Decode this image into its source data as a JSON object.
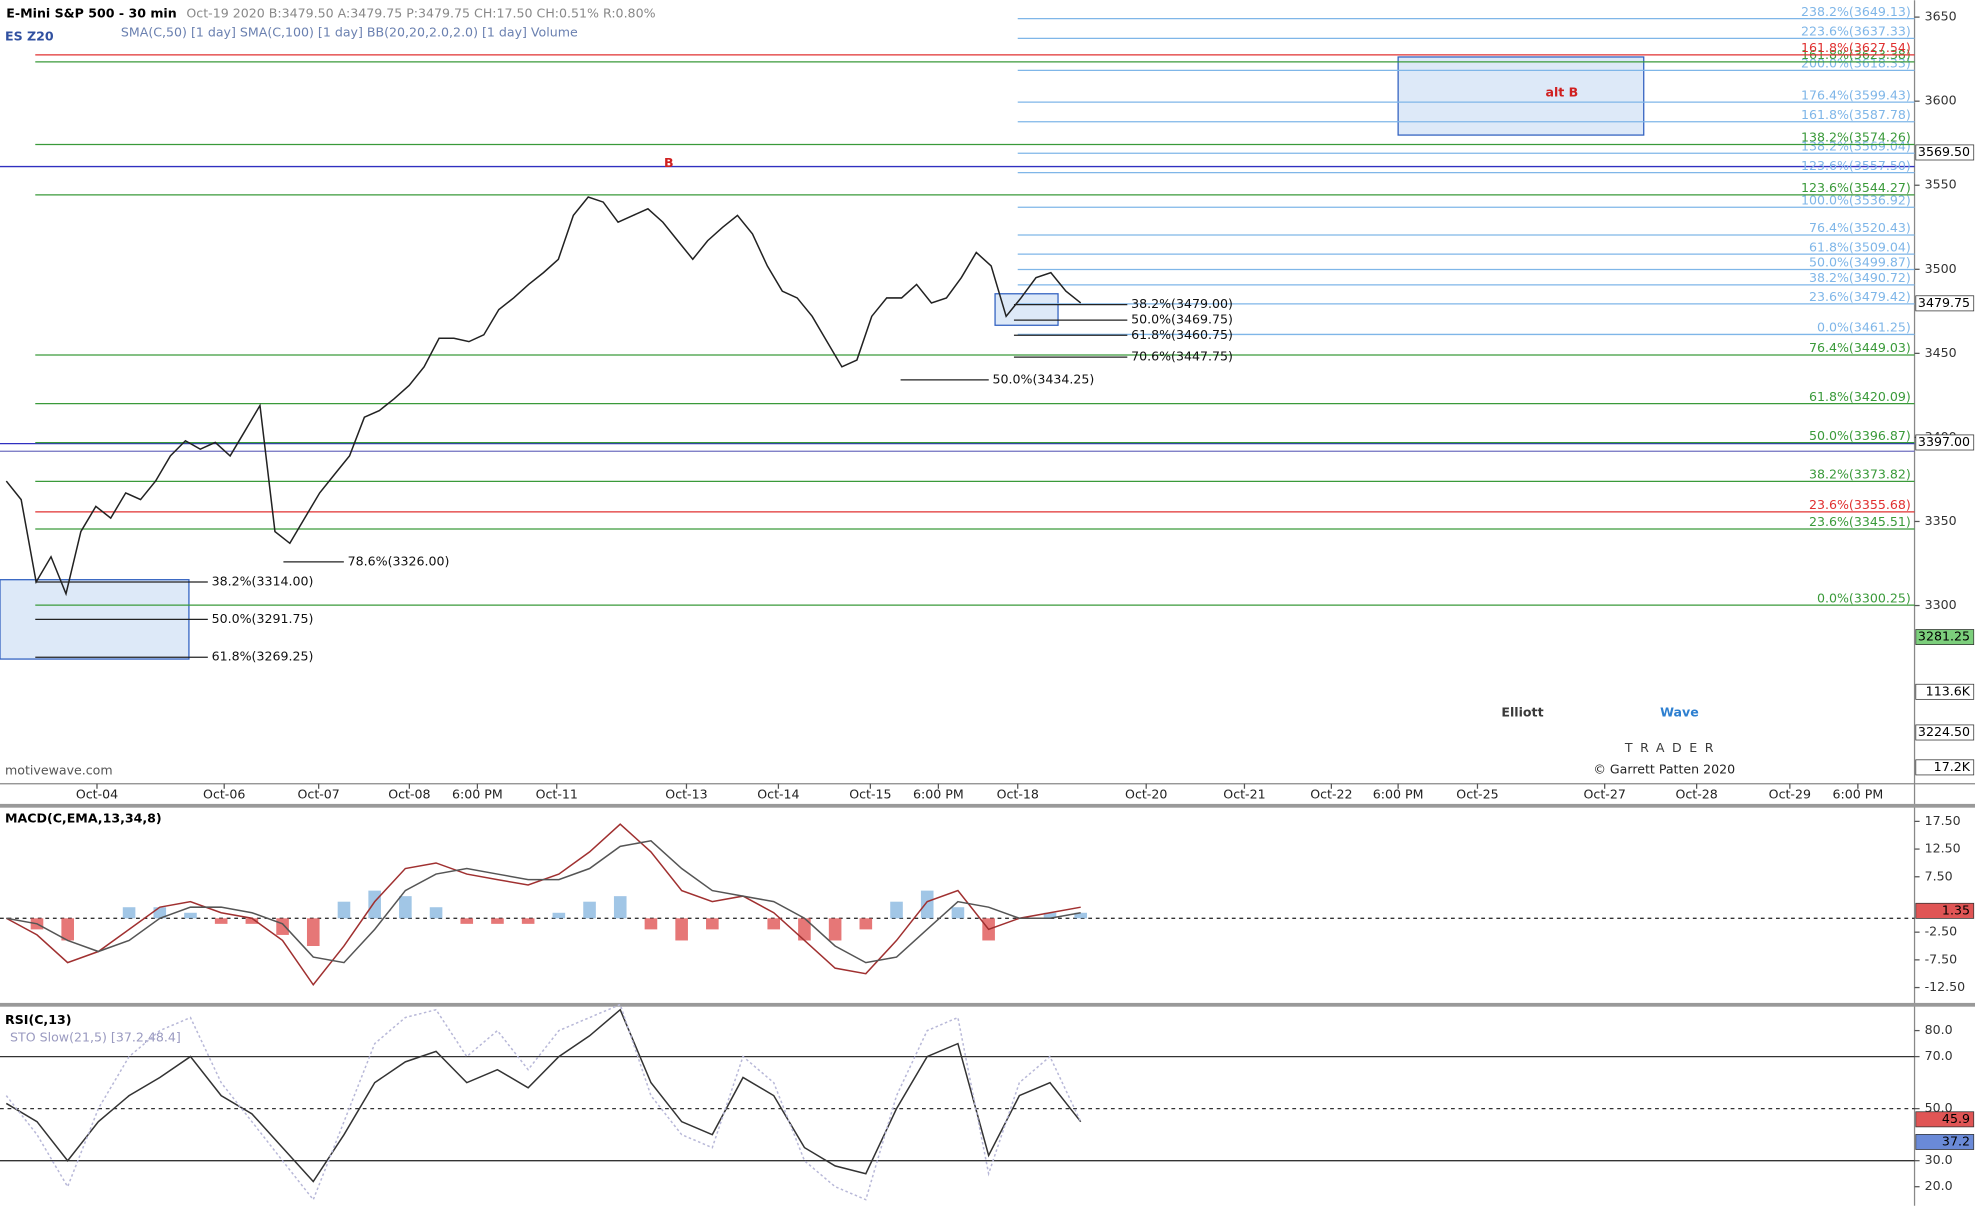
{
  "header": {
    "title": "E-Mini S&P 500 - 30 min",
    "quote": "Oct-19 2020 B:3479.50 A:3479.75 P:3479.75 CH:17.50 CH:0.51% R:0.80%",
    "symbol": "ES Z20",
    "studies": "SMA(C,50) [1 day]  SMA(C,100) [1 day]  BB(20,20,2.0,2.0) [1 day]  Volume"
  },
  "watermark": "motivewave.com",
  "logo": {
    "word1": "Elliott",
    "word2": "Wave",
    "sub": "TRADER",
    "copyright": "© Garrett Patten 2020"
  },
  "chart_data": [
    {
      "type": "line",
      "color": "#222222",
      "values": [
        3374,
        3363,
        3314,
        3329,
        3307,
        3344,
        3359,
        3352,
        3367,
        3363,
        3374,
        3389,
        3398,
        3393,
        3397,
        3389,
        3404,
        3419,
        3344,
        3337,
        3352,
        3367,
        3378,
        3389,
        3412,
        3416,
        3423,
        3431,
        3442,
        3459,
        3459,
        3457,
        3461,
        3476,
        3483,
        3491,
        3498,
        3506,
        3532,
        3543,
        3540,
        3528,
        3532,
        3536,
        3528,
        3517,
        3506,
        3517,
        3525,
        3532,
        3521,
        3502,
        3487,
        3483,
        3472,
        3457,
        3442,
        3446,
        3472,
        3483,
        3483,
        3491,
        3480,
        3483,
        3495,
        3510,
        3502,
        3472,
        3483,
        3495,
        3498,
        3487,
        3480
      ],
      "ylim": [
        3194,
        3660
      ],
      "yticks": [
        3300,
        3350,
        3400,
        3450,
        3500,
        3550,
        3600,
        3650
      ],
      "x_axis_labels": [
        "Oct-04",
        "Oct-06",
        "Oct-07",
        "Oct-08",
        "6:00 PM",
        "Oct-11",
        "Oct-13",
        "Oct-14",
        "Oct-15",
        "6:00 PM",
        "Oct-18",
        "Oct-20",
        "Oct-21",
        "Oct-22",
        "6:00 PM",
        "Oct-25",
        "Oct-27",
        "Oct-28",
        "Oct-29",
        "6:00 PM"
      ],
      "levels": [
        {
          "label": "0.0%(3300.25)",
          "value": 3300.25,
          "color": "#3a9a3a"
        },
        {
          "label": "23.6%(3345.51)",
          "value": 3345.51,
          "color": "#3a9a3a"
        },
        {
          "label": "23.6%(3355.68)",
          "value": 3355.68,
          "color": "#e03030"
        },
        {
          "label": "38.2%(3373.82)",
          "value": 3373.82,
          "color": "#3a9a3a"
        },
        {
          "label": "50.0%(3396.87)",
          "value": 3396.87,
          "color": "#3a9a3a"
        },
        {
          "label": "61.8%(3420.09)",
          "value": 3420.09,
          "color": "#3a9a3a"
        },
        {
          "label": "76.4%(3449.03)",
          "value": 3449.03,
          "color": "#3a9a3a"
        },
        {
          "label": "0.0%(3461.25)",
          "value": 3461.25,
          "color": "#7fb6e8"
        },
        {
          "label": "23.6%(3479.42)",
          "value": 3479.42,
          "color": "#7fb6e8"
        },
        {
          "label": "38.2%(3490.72)",
          "value": 3490.72,
          "color": "#7fb6e8"
        },
        {
          "label": "50.0%(3499.87)",
          "value": 3499.87,
          "color": "#7fb6e8"
        },
        {
          "label": "61.8%(3509.04)",
          "value": 3509.04,
          "color": "#7fb6e8"
        },
        {
          "label": "76.4%(3520.43)",
          "value": 3520.43,
          "color": "#7fb6e8"
        },
        {
          "label": "100.0%(3536.92)",
          "value": 3536.92,
          "color": "#7fb6e8"
        },
        {
          "label": "123.6%(3544.27)",
          "value": 3544.27,
          "color": "#3a9a3a"
        },
        {
          "label": "123.6%(3557.50)",
          "value": 3557.5,
          "color": "#7fb6e8"
        },
        {
          "label": "138.2%(3569.04)",
          "value": 3569.04,
          "color": "#7fb6e8"
        },
        {
          "label": "138.2%(3574.26)",
          "value": 3574.26,
          "color": "#3a9a3a"
        },
        {
          "label": "161.8%(3587.78)",
          "value": 3587.78,
          "color": "#7fb6e8"
        },
        {
          "label": "176.4%(3599.43)",
          "value": 3599.43,
          "color": "#7fb6e8"
        },
        {
          "label": "200.0%(3618.33)",
          "value": 3618.33,
          "color": "#7fb6e8"
        },
        {
          "label": "161.8%(3623.38)",
          "value": 3623.38,
          "color": "#3a9a3a"
        },
        {
          "label": "161.8%(3627.54)",
          "value": 3627.54,
          "color": "#e03030"
        },
        {
          "label": "223.6%(3637.33)",
          "value": 3637.33,
          "color": "#7fb6e8"
        },
        {
          "label": "238.2%(3649.13)",
          "value": 3649.13,
          "color": "#7fb6e8"
        }
      ],
      "annotations": [
        {
          "label": "38.2%(3479.00)",
          "value": 3479.0
        },
        {
          "label": "50.0%(3469.75)",
          "value": 3469.75
        },
        {
          "label": "61.8%(3460.75)",
          "value": 3460.75
        },
        {
          "label": "70.6%(3447.75)",
          "value": 3447.75
        },
        {
          "label": "50.0%(3434.25)",
          "value": 3434.25
        },
        {
          "label": "78.6%(3326.00)",
          "value": 3326.0
        },
        {
          "label": "38.2%(3314.00)",
          "value": 3314.0
        },
        {
          "label": "50.0%(3291.75)",
          "value": 3291.75
        },
        {
          "label": "61.8%(3269.25)",
          "value": 3269.25
        }
      ],
      "price_tags": [
        {
          "label": "3569.50",
          "value": 3569.5,
          "color": "#ffffff"
        },
        {
          "label": "3479.75",
          "value": 3479.75,
          "color": "#ffffff"
        },
        {
          "label": "3397.00",
          "value": 3397.0,
          "color": "#ffffff"
        },
        {
          "label": "3281.25",
          "value": 3281.25,
          "color": "#7ccf7c"
        },
        {
          "label": "3224.50",
          "value": 3224.5,
          "color": "#ffffff"
        }
      ],
      "volume_tags": [
        "113.6K",
        "17.2K"
      ],
      "wave_labels": [
        {
          "label": "B",
          "value": 3563,
          "color": "#d02020"
        },
        {
          "label": "alt B",
          "value": 3605,
          "color": "#d02020"
        }
      ]
    },
    {
      "type": "line",
      "title": "MACD(C,EMA,13,34,8)",
      "series": [
        {
          "color": "#a03030",
          "values": [
            0,
            -3,
            -8,
            -6,
            -2,
            2,
            3,
            1,
            0,
            -4,
            -12,
            -5,
            3,
            9,
            10,
            8,
            7,
            6,
            8,
            12,
            17,
            12,
            5,
            3,
            4,
            1,
            -4,
            -9,
            -10,
            -4,
            3,
            5,
            -2,
            0,
            1,
            2
          ]
        },
        {
          "color": "#555555",
          "values": [
            0,
            -1,
            -4,
            -6,
            -4,
            0,
            2,
            2,
            1,
            -1,
            -7,
            -8,
            -2,
            5,
            8,
            9,
            8,
            7,
            7,
            9,
            13,
            14,
            9,
            5,
            4,
            3,
            0,
            -5,
            -8,
            -7,
            -2,
            3,
            2,
            0,
            0,
            1
          ]
        }
      ],
      "histogram": {
        "pos_color": "#8ab8e0",
        "neg_color": "#e05555",
        "values": [
          0,
          -2,
          -4,
          0,
          2,
          2,
          1,
          -1,
          -1,
          -3,
          -5,
          3,
          5,
          4,
          2,
          -1,
          -1,
          -1,
          1,
          3,
          4,
          -2,
          -4,
          -2,
          0,
          -2,
          -4,
          -4,
          -2,
          3,
          5,
          2,
          -4,
          0,
          1,
          1
        ]
      },
      "ylim": [
        -15.5,
        20.2
      ],
      "yticks": [
        {
          "value": 17.5,
          "label": "17.50"
        },
        {
          "value": 12.5,
          "label": "12.50"
        },
        {
          "value": 7.5,
          "label": "7.50"
        },
        {
          "value": -2.5,
          "label": "-2.50"
        },
        {
          "value": -7.5,
          "label": "-7.50"
        },
        {
          "value": -12.5,
          "label": "-12.50"
        }
      ],
      "tag": {
        "label": "1.35",
        "value": 1.35,
        "color": "#e05555"
      }
    },
    {
      "type": "line",
      "title": "RSI(C,13)",
      "subtitle": "STO Slow(21,5) [37.2,48.4]",
      "series": [
        {
          "color": "#333333",
          "values": [
            52,
            45,
            30,
            45,
            55,
            62,
            70,
            55,
            48,
            35,
            22,
            40,
            60,
            68,
            72,
            60,
            65,
            58,
            70,
            78,
            88,
            60,
            45,
            40,
            62,
            55,
            35,
            28,
            25,
            50,
            70,
            75,
            32,
            55,
            60,
            45
          ]
        },
        {
          "color": "#b8b8d8",
          "dashed": true,
          "values": [
            55,
            40,
            20,
            50,
            70,
            80,
            85,
            60,
            45,
            30,
            15,
            45,
            75,
            85,
            88,
            70,
            80,
            65,
            80,
            85,
            90,
            55,
            40,
            35,
            70,
            60,
            30,
            20,
            15,
            55,
            80,
            85,
            25,
            60,
            70,
            45
          ]
        }
      ],
      "ylim": [
        12.7,
        88.7
      ],
      "yticks": [
        {
          "value": 20,
          "label": "20.0"
        },
        {
          "value": 30,
          "label": "30.0"
        },
        {
          "value": 50,
          "label": "50.0"
        },
        {
          "value": 70,
          "label": "70.0"
        },
        {
          "value": 80,
          "label": "80.0"
        }
      ],
      "hlines": [
        70,
        50,
        30
      ],
      "tags": [
        {
          "label": "45.9",
          "value": 45.9,
          "color": "#e05555"
        },
        {
          "label": "37.2",
          "value": 37.2,
          "color": "#6a8ad8"
        }
      ]
    }
  ]
}
